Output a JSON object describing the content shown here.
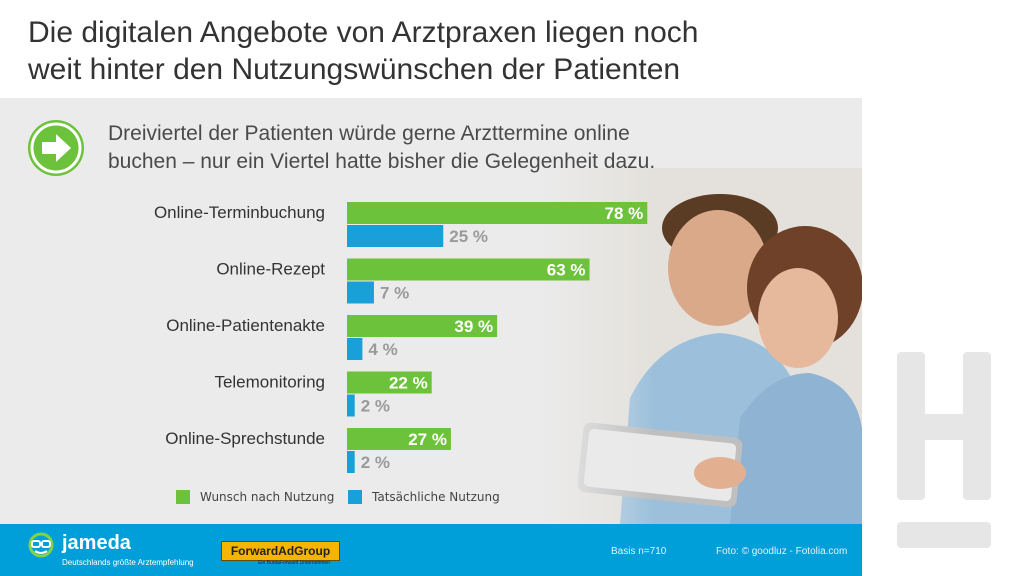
{
  "title": {
    "line1": "Die digitalen Angebote von Arztpraxen liegen noch",
    "line2": "weit hinter den Nutzungswünschen der Patienten"
  },
  "subtitle": {
    "line1": "Dreiviertel der Patienten würde gerne Arzttermine online",
    "line2": "buchen – nur ein Viertel hatte bisher die Gelegenheit dazu."
  },
  "colors": {
    "wish": "#6cc23a",
    "actual": "#1aa0d8",
    "panel": "#ebebeb",
    "footer": "#009fda"
  },
  "chart_data": {
    "type": "bar",
    "orientation": "horizontal",
    "categories": [
      "Online-Terminbuchung",
      "Online-Rezept",
      "Online-Patientenakte",
      "Telemonitoring",
      "Online-Sprechstunde"
    ],
    "series": [
      {
        "name": "Wunsch nach Nutzung",
        "values": [
          78,
          63,
          39,
          22,
          27
        ],
        "labels": [
          "78 %",
          "63 %",
          "39 %",
          "22 %",
          "27 %"
        ]
      },
      {
        "name": "Tatsächliche Nutzung",
        "values": [
          25,
          7,
          4,
          2,
          2
        ],
        "labels": [
          "25 %",
          "7 %",
          "4 %",
          "2 %",
          "2 %"
        ]
      }
    ],
    "xlim": [
      0,
      100
    ],
    "unit": "%"
  },
  "legend": {
    "wish": "Wunsch nach Nutzung",
    "actual": "Tatsächliche Nutzung"
  },
  "footer": {
    "logo": "jameda",
    "tagline": "Deutschlands größte Arztempfehlung",
    "partner": "ForwardAdGroup",
    "partner_sub": "Ein BurdaForward Unternehmen",
    "basis": "Basis n=710",
    "credit": "Foto: © goodluz - Fotolia.com"
  },
  "icons": [
    "arrow-right-icon",
    "jameda-logo-icon",
    "h-brand-icon"
  ]
}
